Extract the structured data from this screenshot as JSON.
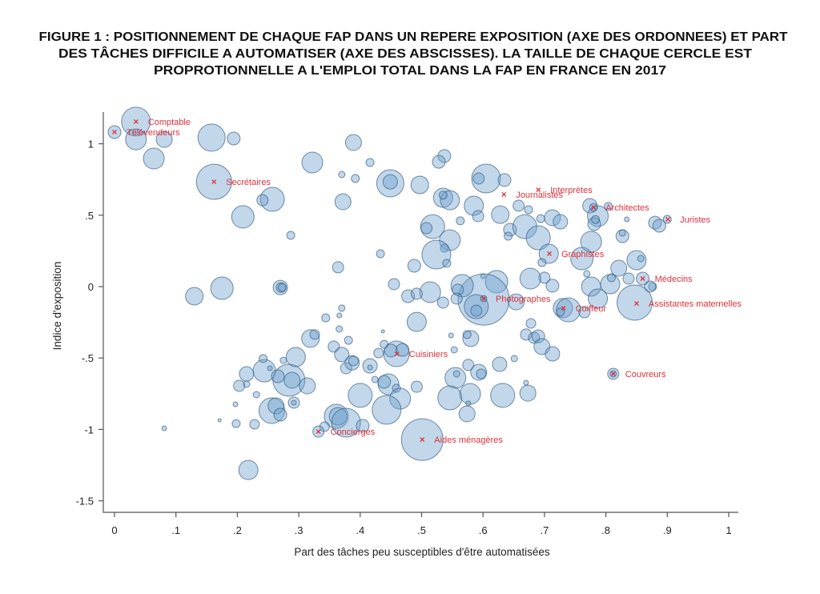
{
  "figure": {
    "title_lines": [
      "FIGURE 1 : POSITIONNEMENT DE CHAQUE FAP DANS UN REPERE EXPOSITION (AXE DES ORDONNEES) ET PART",
      "DES TÂCHES DIFFICILE A AUTOMATISER (AXE DES ABSCISSES). LA TAILLE DE CHAQUE CERCLE EST",
      "PROPROTIONNELLE A L'EMPLOI TOTAL DANS LA FAP EN FRANCE EN 2017"
    ]
  },
  "chart_data": {
    "type": "scatter",
    "variant": "bubble",
    "xlabel": "Part des tâches peu susceptibles d'être automatisées",
    "ylabel": "Indice d'exposition",
    "xlim": [
      0,
      1
    ],
    "ylim": [
      -1.5,
      1.2
    ],
    "x_ticks": [
      "0",
      ".1",
      ".2",
      ".3",
      ".4",
      ".5",
      ".6",
      ".7",
      ".8",
      ".9",
      "1"
    ],
    "x_tick_values": [
      0,
      0.1,
      0.2,
      0.3,
      0.4,
      0.5,
      0.6,
      0.7,
      0.8,
      0.9,
      1
    ],
    "y_ticks": [
      "1",
      ".5",
      "0",
      "-.5",
      "-1",
      "-1.5"
    ],
    "y_tick_values": [
      1,
      0.5,
      0,
      -0.5,
      -1,
      -1.5
    ],
    "grid": false,
    "colors": {
      "bubble_fill": "#a9c8e0",
      "bubble_stroke": "#4a7396",
      "label": "#e0303a"
    },
    "bubble_fields": [
      "x",
      "y",
      "emploi_relatif"
    ],
    "bubbles": [
      [
        0.035,
        1.155,
        324
      ],
      [
        0,
        1.082,
        64
      ],
      [
        0.035,
        1.031,
        169
      ],
      [
        0.081,
        1.031,
        100
      ],
      [
        0.064,
        0.897,
        169
      ],
      [
        0.158,
        1.043,
        289
      ],
      [
        0.194,
        1.037,
        64
      ],
      [
        0.162,
        0.734,
        484
      ],
      [
        0.257,
        0.611,
        225
      ],
      [
        0.241,
        0.605,
        49
      ],
      [
        0.209,
        0.488,
        196
      ],
      [
        0.287,
        0.359,
        25
      ],
      [
        0.322,
        0.869,
        169
      ],
      [
        0.389,
        1.009,
        100
      ],
      [
        0.37,
        0.785,
        16
      ],
      [
        0.392,
        0.757,
        25
      ],
      [
        0.372,
        0.594,
        100
      ],
      [
        0.416,
        0.869,
        25
      ],
      [
        0.449,
        0.723,
        289
      ],
      [
        0.449,
        0.734,
        81
      ],
      [
        0.497,
        0.712,
        121
      ],
      [
        0.433,
        0.23,
        25
      ],
      [
        0.364,
        0.135,
        49
      ],
      [
        0.455,
        0.017,
        49
      ],
      [
        0.488,
        0.146,
        64
      ],
      [
        0.13,
        -0.067,
        121
      ],
      [
        0.175,
        -0.011,
        196
      ],
      [
        0.27,
        -0.006,
        81
      ],
      [
        0.271,
        -0.006,
        36
      ],
      [
        0.273,
        -0.006,
        25
      ],
      [
        0.478,
        -0.067,
        64
      ],
      [
        0.537,
        0.914,
        64
      ],
      [
        0.528,
        0.874,
        64
      ],
      [
        0.605,
        0.757,
        324
      ],
      [
        0.593,
        0.757,
        49
      ],
      [
        0.635,
        0.746,
        64
      ],
      [
        0.535,
        0.622,
        144
      ],
      [
        0.546,
        0.605,
        144
      ],
      [
        0.535,
        0.64,
        25
      ],
      [
        0.585,
        0.566,
        144
      ],
      [
        0.592,
        0.493,
        49
      ],
      [
        0.628,
        0.504,
        121
      ],
      [
        0.563,
        0.46,
        25
      ],
      [
        0.518,
        0.42,
        225
      ],
      [
        0.508,
        0.409,
        49
      ],
      [
        0.546,
        0.325,
        169
      ],
      [
        0.537,
        0.269,
        25
      ],
      [
        0.524,
        0.224,
        324
      ],
      [
        0.541,
        0.163,
        25
      ],
      [
        0.644,
        0.398,
        64
      ],
      [
        0.641,
        0.353,
        25
      ],
      [
        0.668,
        0.42,
        225
      ],
      [
        0.69,
        0.342,
        225
      ],
      [
        0.658,
        0.566,
        49
      ],
      [
        0.674,
        0.538,
        25
      ],
      [
        0.694,
        0.476,
        25
      ],
      [
        0.713,
        0.482,
        100
      ],
      [
        0.726,
        0.454,
        81
      ],
      [
        0.707,
        0.23,
        144
      ],
      [
        0.696,
        0.168,
        25
      ],
      [
        0.761,
        0.196,
        196
      ],
      [
        0.776,
        0.314,
        169
      ],
      [
        0.774,
        0.566,
        81
      ],
      [
        0.787,
        0.493,
        169
      ],
      [
        0.781,
        0.437,
        64
      ],
      [
        0.783,
        0.47,
        25
      ],
      [
        0.78,
        0.555,
        25
      ],
      [
        0.804,
        0.561,
        25
      ],
      [
        0.834,
        0.471,
        9
      ],
      [
        0.827,
        0.353,
        64
      ],
      [
        0.827,
        0.376,
        16
      ],
      [
        0.88,
        0.448,
        64
      ],
      [
        0.887,
        0.426,
        64
      ],
      [
        0.9,
        0.471,
        25
      ],
      [
        0.85,
        0.185,
        144
      ],
      [
        0.857,
        0.196,
        16
      ],
      [
        0.821,
        0.129,
        100
      ],
      [
        0.86,
        0.056,
        64
      ],
      [
        0.876,
        0.0,
        25
      ],
      [
        0.872,
        0.0,
        49
      ],
      [
        0.837,
        0.056,
        49
      ],
      [
        0.807,
        0.017,
        144
      ],
      [
        0.809,
        0.062,
        25
      ],
      [
        0.776,
        0.0,
        144
      ],
      [
        0.769,
        0.09,
        16
      ],
      [
        0.787,
        -0.084,
        144
      ],
      [
        0.847,
        -0.112,
        484
      ],
      [
        0.73,
        -0.151,
        144
      ],
      [
        0.739,
        -0.163,
        225
      ],
      [
        0.726,
        -0.179,
        25
      ],
      [
        0.765,
        -0.179,
        49
      ],
      [
        0.7,
        0.062,
        49
      ],
      [
        0.713,
        0.006,
        64
      ],
      [
        0.677,
        0.056,
        169
      ],
      [
        0.622,
        0.034,
        196
      ],
      [
        0.6,
        0.073,
        9
      ],
      [
        0.601,
        -0.09,
        1024
      ],
      [
        0.589,
        -0.14,
        225
      ],
      [
        0.589,
        -0.168,
        49
      ],
      [
        0.601,
        -0.084,
        16
      ],
      [
        0.654,
        -0.107,
        100
      ],
      [
        0.566,
        0.006,
        196
      ],
      [
        0.559,
        -0.022,
        49
      ],
      [
        0.557,
        -0.084,
        49
      ],
      [
        0.535,
        -0.112,
        49
      ],
      [
        0.514,
        -0.039,
        169
      ],
      [
        0.492,
        -0.05,
        49
      ],
      [
        0.492,
        -0.247,
        144
      ],
      [
        0.37,
        -0.151,
        16
      ],
      [
        0.366,
        -0.202,
        9
      ],
      [
        0.344,
        -0.219,
        25
      ],
      [
        0.366,
        -0.297,
        16
      ],
      [
        0.381,
        -0.376,
        25
      ],
      [
        0.319,
        -0.364,
        121
      ],
      [
        0.326,
        -0.336,
        36
      ],
      [
        0.357,
        -0.42,
        49
      ],
      [
        0.37,
        -0.476,
        81
      ],
      [
        0.377,
        -0.572,
        49
      ],
      [
        0.387,
        -0.533,
        81
      ],
      [
        0.389,
        -0.521,
        36
      ],
      [
        0.416,
        -0.555,
        81
      ],
      [
        0.416,
        -0.566,
        9
      ],
      [
        0.437,
        -0.314,
        4
      ],
      [
        0.439,
        -0.404,
        25
      ],
      [
        0.43,
        -0.465,
        36
      ],
      [
        0.459,
        -0.471,
        256
      ],
      [
        0.45,
        -0.448,
        64
      ],
      [
        0.469,
        -0.443,
        64
      ],
      [
        0.492,
        -0.701,
        49
      ],
      [
        0.446,
        -0.684,
        169
      ],
      [
        0.439,
        -0.667,
        64
      ],
      [
        0.424,
        -0.65,
        16
      ],
      [
        0.459,
        -0.712,
        25
      ],
      [
        0.465,
        -0.785,
        169
      ],
      [
        0.4,
        -0.762,
        225
      ],
      [
        0.443,
        -0.863,
        324
      ],
      [
        0.361,
        -0.908,
        225
      ],
      [
        0.364,
        -0.908,
        121
      ],
      [
        0.377,
        -0.953,
        324
      ],
      [
        0.404,
        -0.975,
        64
      ],
      [
        0.342,
        -0.981,
        36
      ],
      [
        0.332,
        -1.015,
        49
      ],
      [
        0.501,
        -1.071,
        676
      ],
      [
        0.218,
        -1.284,
        144
      ],
      [
        0.081,
        -0.992,
        9
      ],
      [
        0.171,
        -0.936,
        4
      ],
      [
        0.198,
        -0.959,
        25
      ],
      [
        0.228,
        -0.964,
        36
      ],
      [
        0.197,
        -0.824,
        9
      ],
      [
        0.231,
        -0.757,
        16
      ],
      [
        0.256,
        -0.869,
        256
      ],
      [
        0.263,
        -0.835,
        100
      ],
      [
        0.27,
        -0.897,
        64
      ],
      [
        0.292,
        -0.813,
        49
      ],
      [
        0.292,
        -0.813,
        9
      ],
      [
        0.284,
        -0.656,
        400
      ],
      [
        0.289,
        -0.656,
        100
      ],
      [
        0.314,
        -0.695,
        100
      ],
      [
        0.295,
        -0.493,
        144
      ],
      [
        0.275,
        -0.516,
        16
      ],
      [
        0.244,
        -0.589,
        196
      ],
      [
        0.242,
        -0.504,
        25
      ],
      [
        0.253,
        -0.572,
        9
      ],
      [
        0.215,
        -0.611,
        81
      ],
      [
        0.203,
        -0.695,
        49
      ],
      [
        0.215,
        -0.684,
        16
      ],
      [
        0.266,
        -0.628,
        64
      ],
      [
        0.548,
        -0.342,
        9
      ],
      [
        0.58,
        -0.364,
        100
      ],
      [
        0.574,
        -0.336,
        25
      ],
      [
        0.553,
        -0.443,
        16
      ],
      [
        0.627,
        -0.544,
        81
      ],
      [
        0.651,
        -0.504,
        16
      ],
      [
        0.576,
        -0.549,
        49
      ],
      [
        0.593,
        -0.6,
        100
      ],
      [
        0.597,
        -0.611,
        36
      ],
      [
        0.555,
        -0.639,
        169
      ],
      [
        0.557,
        -0.611,
        16
      ],
      [
        0.546,
        -0.779,
        225
      ],
      [
        0.579,
        -0.751,
        169
      ],
      [
        0.574,
        -0.891,
        100
      ],
      [
        0.576,
        -0.818,
        9
      ],
      [
        0.632,
        -0.762,
        225
      ],
      [
        0.673,
        -0.746,
        100
      ],
      [
        0.67,
        -0.673,
        9
      ],
      [
        0.678,
        -0.258,
        36
      ],
      [
        0.67,
        -0.336,
        49
      ],
      [
        0.683,
        -0.359,
        49
      ],
      [
        0.69,
        -0.348,
        64
      ],
      [
        0.696,
        -0.42,
        100
      ],
      [
        0.713,
        -0.471,
        81
      ],
      [
        0.812,
        -0.611,
        49
      ],
      [
        0.812,
        -0.611,
        16
      ]
    ],
    "labeled_points": [
      {
        "name": "Comptable",
        "x": 0.035,
        "y": 1.155
      },
      {
        "name": "Télévendeurs",
        "x": 0.0,
        "y": 1.082
      },
      {
        "name": "Secrétaires",
        "x": 0.162,
        "y": 0.734
      },
      {
        "name": "Journalistes",
        "x": 0.634,
        "y": 0.645
      },
      {
        "name": "Interprètes",
        "x": 0.69,
        "y": 0.678
      },
      {
        "name": "Architectes",
        "x": 0.78,
        "y": 0.555
      },
      {
        "name": "Juristes",
        "x": 0.901,
        "y": 0.471
      },
      {
        "name": "Graphistes",
        "x": 0.708,
        "y": 0.23
      },
      {
        "name": "Médecins",
        "x": 0.86,
        "y": 0.056
      },
      {
        "name": "Photographes",
        "x": 0.601,
        "y": -0.084
      },
      {
        "name": "Coiffeur",
        "x": 0.731,
        "y": -0.151
      },
      {
        "name": "Assistantes maternelles",
        "x": 0.85,
        "y": -0.118
      },
      {
        "name": "Cuisiniers",
        "x": 0.46,
        "y": -0.471
      },
      {
        "name": "Couvreurs",
        "x": 0.812,
        "y": -0.611
      },
      {
        "name": "Concierges",
        "x": 0.332,
        "y": -1.015
      },
      {
        "name": "Aides ménagères",
        "x": 0.501,
        "y": -1.071
      }
    ]
  }
}
